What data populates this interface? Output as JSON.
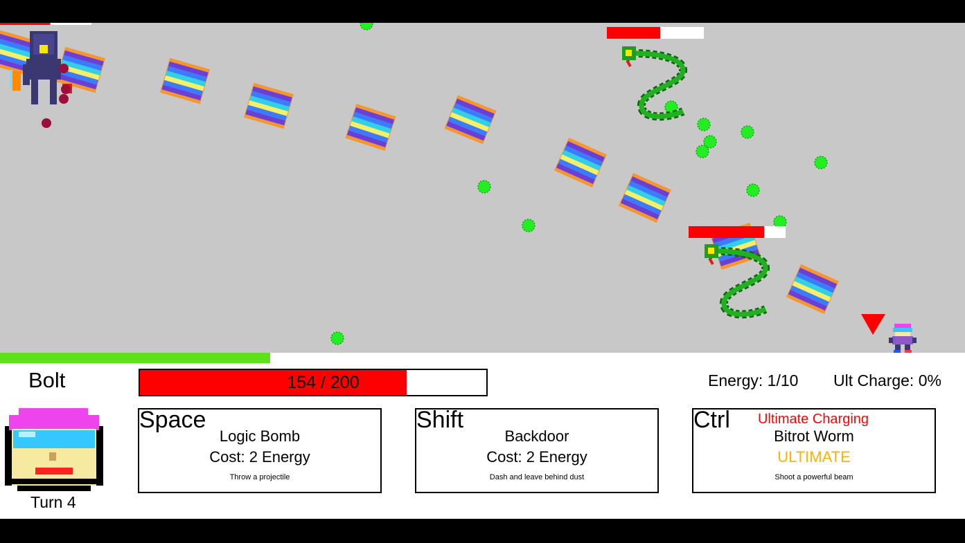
{
  "player": {
    "name": "Bolt",
    "hp_current": 154,
    "hp_max": 200,
    "hp_text": "154 / 200",
    "turn_label": "Turn 4",
    "turn_progress_fraction": 0.28,
    "energy_text": "Energy: 1/10",
    "ult_charge_text": "Ult Charge: 0%"
  },
  "abilities": [
    {
      "key": "Space",
      "name": "Logic Bomb",
      "cost": "Cost: 2 Energy",
      "description": "Throw a projectile"
    },
    {
      "key": "Shift",
      "name": "Backdoor",
      "cost": "Cost: 2 Energy",
      "description": "Dash and leave behind dust"
    },
    {
      "key": "Ctrl",
      "status": "Ultimate Charging",
      "name": "Bitrot Worm",
      "cost": "ULTIMATE",
      "description": "Shoot a powerful beam"
    }
  ],
  "enemies": [
    {
      "kind": "robot",
      "health_fraction": 0.55
    },
    {
      "kind": "worm",
      "health_fraction": 0.55
    },
    {
      "kind": "worm",
      "health_fraction": 0.78
    }
  ],
  "colors": {
    "field_bg": "#c8c8c8",
    "hp_fill": "#ff0000",
    "turn_progress": "#5de21a",
    "dust": "#22ee22",
    "ultimate_status": "#ff0000",
    "ultimate_label": "#ffb000"
  },
  "icons": {
    "target_marker": "red-triangle-icon",
    "player_sprite": "bolt-sprite",
    "portrait": "bolt-portrait"
  }
}
